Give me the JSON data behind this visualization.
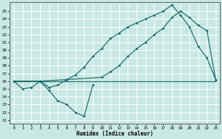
{
  "xlabel": "Humidex (Indice chaleur)",
  "background_color": "#c8e8e4",
  "grid_color": "#ffffff",
  "line_color": "#1a6b6b",
  "xlim": [
    -0.5,
    23.5
  ],
  "ylim": [
    10.5,
    26.2
  ],
  "yticks": [
    11,
    12,
    13,
    14,
    15,
    16,
    17,
    18,
    19,
    20,
    21,
    22,
    23,
    24,
    25
  ],
  "xticks": [
    0,
    1,
    2,
    3,
    4,
    5,
    6,
    7,
    8,
    9,
    10,
    11,
    12,
    13,
    14,
    15,
    16,
    17,
    18,
    19,
    20,
    21,
    22,
    23
  ],
  "line_flat_x": [
    0,
    1,
    2,
    3,
    4,
    5,
    6,
    7,
    8,
    9,
    10,
    11,
    12,
    13,
    14,
    15,
    16,
    17,
    18,
    19,
    20,
    21,
    22,
    23
  ],
  "line_flat_y": [
    16,
    16,
    16,
    16,
    16,
    16,
    16,
    16,
    16,
    16,
    16,
    16,
    16,
    16,
    16,
    16,
    16,
    16,
    16,
    16,
    16,
    16,
    16,
    16
  ],
  "line_dip_x": [
    0,
    1,
    2,
    3,
    4,
    5,
    6,
    7,
    8,
    9
  ],
  "line_dip_y": [
    16,
    15.0,
    15.2,
    16.0,
    14.8,
    13.5,
    13.0,
    12.0,
    11.5,
    15.5
  ],
  "line_rise1_x": [
    0,
    3,
    4,
    5,
    6,
    7,
    8,
    9,
    10,
    11,
    12,
    13,
    14,
    15,
    16,
    17,
    18,
    19,
    20,
    21,
    22,
    23
  ],
  "line_rise1_y": [
    16,
    16,
    15.2,
    15.5,
    16.2,
    16.8,
    17.8,
    19.2,
    20.2,
    21.5,
    22.2,
    23.0,
    23.5,
    24.0,
    24.5,
    25.0,
    25.8,
    24.5,
    23.0,
    20.5,
    19.0,
    16.2
  ],
  "line_rise2_x": [
    0,
    3,
    10,
    11,
    12,
    13,
    14,
    15,
    16,
    17,
    18,
    19,
    20,
    21,
    22,
    23
  ],
  "line_rise2_y": [
    16,
    16,
    16.5,
    17.2,
    18.0,
    19.2,
    20.2,
    21.0,
    22.0,
    22.8,
    24.2,
    25.0,
    24.2,
    23.2,
    22.5,
    16.2
  ]
}
